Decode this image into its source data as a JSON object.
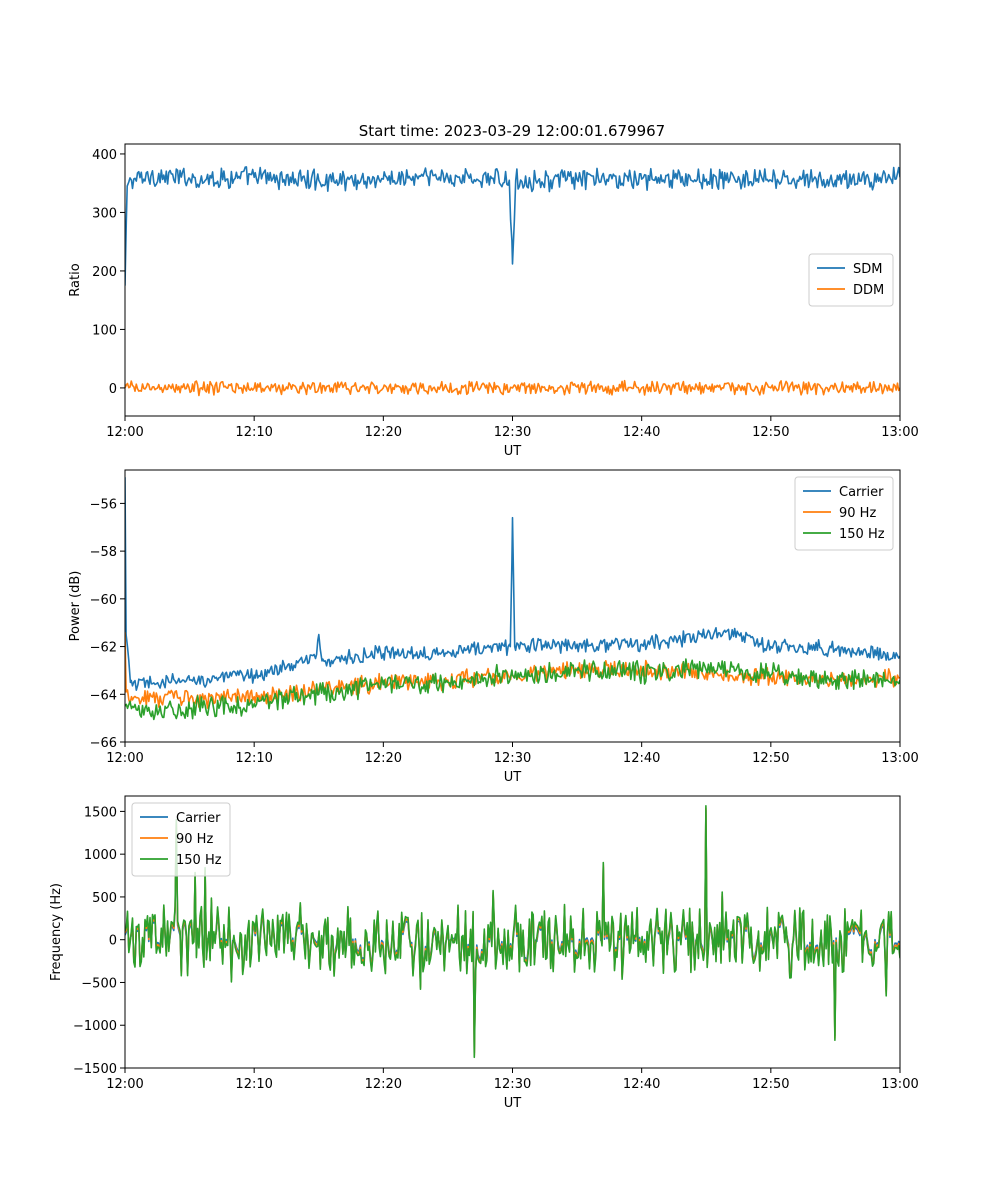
{
  "title": "Start time: 2023-03-29 12:00:01.679967",
  "colors": {
    "c0": "#1f77b4",
    "c1": "#ff7f0e",
    "c2": "#2ca02c"
  },
  "chart_data": [
    {
      "type": "line",
      "title": "Start time: 2023-03-29 12:00:01.679967",
      "xlabel": "UT",
      "ylabel": "Ratio",
      "xlim": [
        "12:00",
        "13:00"
      ],
      "ylim": [
        -48,
        417
      ],
      "xticks": [
        "12:00",
        "12:10",
        "12:20",
        "12:30",
        "12:40",
        "12:50",
        "13:00"
      ],
      "yticks": [
        "0",
        "100",
        "200",
        "300",
        "400"
      ],
      "yticks_values": [
        0,
        100,
        200,
        300,
        400
      ],
      "grid": false,
      "legend_position": "center-right",
      "series": [
        {
          "name": "SDM",
          "color": "#1f77b4",
          "noisy": true,
          "x": [
            "12:00",
            "12:00:10",
            "12:00:30",
            "12:02",
            "12:05",
            "12:10",
            "12:15",
            "12:20",
            "12:25",
            "12:29:45",
            "12:30",
            "12:30:15",
            "12:35",
            "12:40",
            "12:45",
            "12:50",
            "12:55",
            "13:00"
          ],
          "y": [
            175,
            345,
            355,
            362,
            358,
            360,
            355,
            357,
            360,
            355,
            212,
            355,
            356,
            357,
            357,
            355,
            355,
            360
          ],
          "amp": 14
        },
        {
          "name": "DDM",
          "color": "#ff7f0e",
          "noisy": true,
          "x": [
            "12:00",
            "12:10",
            "12:20",
            "12:30",
            "12:40",
            "12:50",
            "13:00"
          ],
          "y": [
            0,
            0,
            0,
            0,
            0,
            0,
            0
          ],
          "amp": 9
        }
      ]
    },
    {
      "type": "line",
      "title": "",
      "xlabel": "UT",
      "ylabel": "Power (dB)",
      "xlim": [
        "12:00",
        "13:00"
      ],
      "ylim": [
        -66,
        -54.6
      ],
      "xticks": [
        "12:00",
        "12:10",
        "12:20",
        "12:30",
        "12:40",
        "12:50",
        "13:00"
      ],
      "yticks": [
        "−66",
        "−64",
        "−62",
        "−60",
        "−58",
        "−56"
      ],
      "yticks_values": [
        -66,
        -64,
        -62,
        -60,
        -58,
        -56
      ],
      "grid": false,
      "legend_position": "upper-right",
      "series": [
        {
          "name": "Carrier",
          "color": "#1f77b4",
          "noisy": true,
          "x": [
            "12:00",
            "12:00:05",
            "12:00:25",
            "12:01",
            "12:05",
            "12:10",
            "12:14:45",
            "12:15",
            "12:15:15",
            "12:20",
            "12:25",
            "12:29:50",
            "12:30",
            "12:30:10",
            "12:35",
            "12:40",
            "12:46:30",
            "12:50",
            "12:55",
            "13:00"
          ],
          "y": [
            -54.9,
            -61.5,
            -63.5,
            -63.6,
            -63.4,
            -63.2,
            -62.5,
            -61.5,
            -62.6,
            -62.3,
            -62.2,
            -62.0,
            -56.6,
            -62.0,
            -61.9,
            -61.9,
            -61.4,
            -62.0,
            -62.1,
            -62.4
          ],
          "amp": 0.25
        },
        {
          "name": "90 Hz",
          "color": "#ff7f0e",
          "noisy": true,
          "x": [
            "12:00",
            "12:00:05",
            "12:00:30",
            "12:05",
            "12:10",
            "12:15",
            "12:20",
            "12:25",
            "12:30",
            "12:35",
            "12:40",
            "12:45",
            "12:50",
            "12:55",
            "13:00"
          ],
          "y": [
            -61.4,
            -63.9,
            -64.1,
            -64.2,
            -64.1,
            -63.8,
            -63.5,
            -63.4,
            -63.2,
            -63.0,
            -63.0,
            -63.1,
            -63.3,
            -63.4,
            -63.3
          ],
          "amp": 0.3
        },
        {
          "name": "150 Hz",
          "color": "#2ca02c",
          "noisy": true,
          "x": [
            "12:00",
            "12:00:30",
            "12:05",
            "12:10",
            "12:15",
            "12:20",
            "12:25",
            "12:30",
            "12:35",
            "12:40",
            "12:45",
            "12:50",
            "12:55",
            "13:00"
          ],
          "y": [
            -64.5,
            -64.6,
            -64.6,
            -64.4,
            -64.0,
            -63.6,
            -63.5,
            -63.2,
            -63.0,
            -63.1,
            -63.0,
            -63.2,
            -63.4,
            -63.4
          ],
          "amp": 0.35
        }
      ]
    },
    {
      "type": "line",
      "title": "",
      "xlabel": "UT",
      "ylabel": "Frequency (Hz)",
      "xlim": [
        "12:00",
        "13:00"
      ],
      "ylim": [
        -1500,
        1680
      ],
      "xticks": [
        "12:00",
        "12:10",
        "12:20",
        "12:30",
        "12:40",
        "12:50",
        "13:00"
      ],
      "yticks": [
        "−1500",
        "−1000",
        "−500",
        "0",
        "500",
        "1000",
        "1500"
      ],
      "yticks_values": [
        -1500,
        -1000,
        -500,
        0,
        500,
        1000,
        1500
      ],
      "grid": false,
      "legend_position": "upper-left",
      "series": [
        {
          "name": "Carrier",
          "color": "#1f77b4",
          "noisy": true,
          "x": [
            "12:00",
            "13:00"
          ],
          "y": [
            0,
            0
          ],
          "amp": 330,
          "offset": -25
        },
        {
          "name": "90 Hz",
          "color": "#ff7f0e",
          "noisy": true,
          "x": [
            "12:00",
            "13:00"
          ],
          "y": [
            0,
            0
          ],
          "amp": 330,
          "offset": 0
        },
        {
          "name": "150 Hz",
          "color": "#2ca02c",
          "noisy": true,
          "x": [
            "12:00",
            "13:00"
          ],
          "y": [
            0,
            0
          ],
          "amp": 330,
          "offset": 25
        }
      ],
      "highlights": [
        {
          "x": "12:27",
          "y": -1350
        },
        {
          "x": "12:45",
          "y": 1540
        },
        {
          "x": "12:04",
          "y": 1380
        },
        {
          "x": "12:55",
          "y": -1150
        }
      ]
    }
  ]
}
